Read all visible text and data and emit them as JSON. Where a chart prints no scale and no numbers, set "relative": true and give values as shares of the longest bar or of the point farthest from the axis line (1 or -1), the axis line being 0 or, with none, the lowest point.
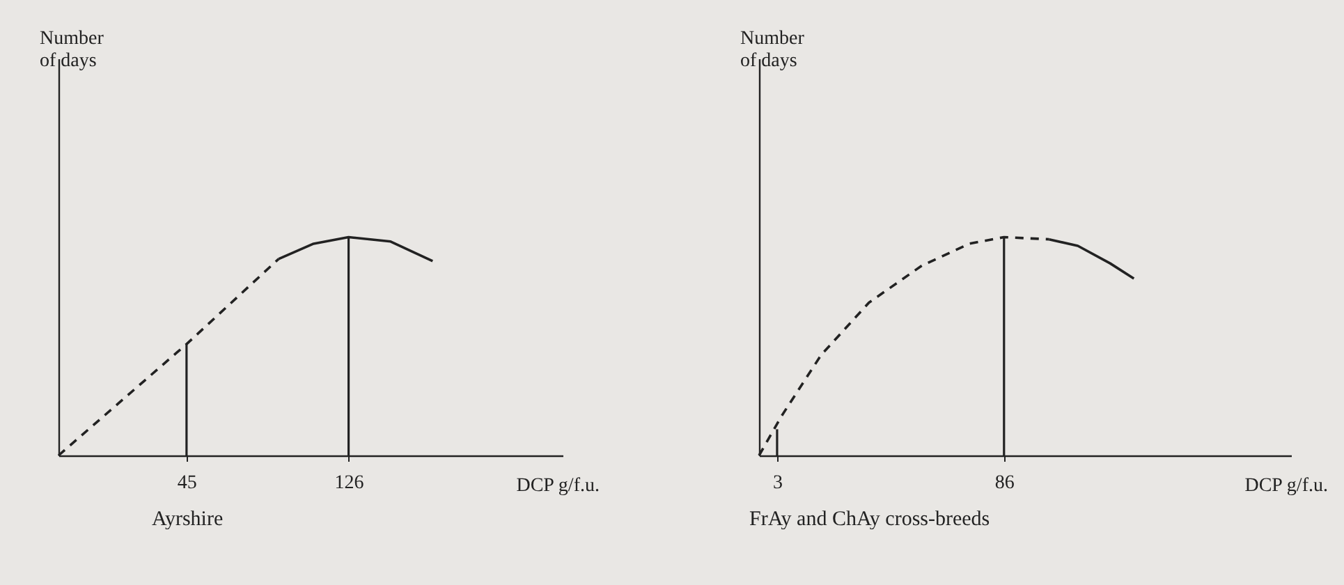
{
  "chart_data": [
    {
      "type": "line",
      "title": "Ayrshire",
      "xlabel": "DCP g/f.u.",
      "ylabel": "Number\nof days",
      "relative": true,
      "marker": "none",
      "xlim": [
        -19,
        233
      ],
      "xticks": [
        45,
        126
      ],
      "series": [
        {
          "line_style": "dashed",
          "color": "#222222",
          "x": [
            -19,
            45,
            91
          ],
          "values": [
            0,
            0.51,
            0.9
          ]
        },
        {
          "line_style": "solid",
          "color": "#222222",
          "x": [
            91,
            108.5,
            126,
            147,
            168
          ],
          "values": [
            0.9,
            0.97,
            1,
            0.98,
            0.89
          ]
        },
        {
          "type": "bar",
          "color": "#222222",
          "x": [
            45,
            126
          ],
          "values": [
            0.51,
            1
          ]
        }
      ]
    },
    {
      "type": "line",
      "title": "FrAy and ChAy cross-breeds",
      "xlabel": "DCP g/f.u.",
      "ylabel": "Number\nof days",
      "relative": true,
      "marker": "none",
      "xlim": [
        -3.6,
        191
      ],
      "xticks": [
        3,
        86
      ],
      "series": [
        {
          "line_style": "dashed",
          "color": "#222222",
          "x": [
            -3.6,
            4.6,
            19.1,
            36.6,
            56,
            73.4,
            86,
            102.5
          ],
          "values": [
            0,
            0.18,
            0.46,
            0.7,
            0.87,
            0.97,
            1,
            0.99
          ]
        },
        {
          "line_style": "solid",
          "color": "#222222",
          "x": [
            102.5,
            113,
            124.8,
            133.5
          ],
          "values": [
            0.99,
            0.96,
            0.88,
            0.81
          ]
        },
        {
          "type": "bar",
          "color": "#222222",
          "x": [
            3,
            86
          ],
          "values": [
            0.12,
            1
          ]
        }
      ]
    }
  ]
}
